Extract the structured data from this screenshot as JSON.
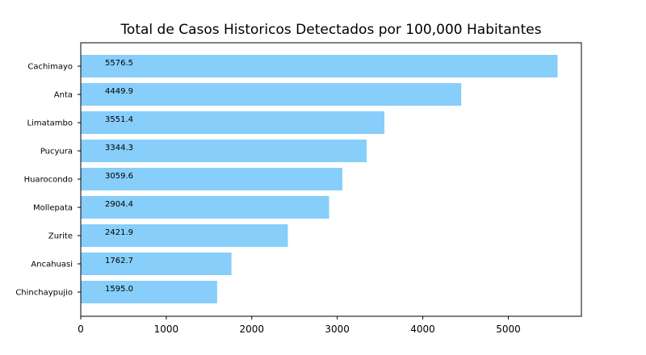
{
  "chart_data": {
    "type": "bar",
    "orientation": "horizontal",
    "title": "Total de Casos Historicos Detectados por 100,000 Habitantes",
    "xlabel": "",
    "ylabel": "",
    "categories": [
      "Cachimayo",
      "Anta",
      "Limatambo",
      "Pucyura",
      "Huarocondo",
      "Mollepata",
      "Zurite",
      "Ancahuasi",
      "Chinchaypujio"
    ],
    "values": [
      5576.5,
      4449.9,
      3551.4,
      3344.3,
      3059.6,
      2904.4,
      2421.9,
      1762.7,
      1595.0
    ],
    "data_labels": [
      "5576.5",
      "4449.9",
      "3551.4",
      "3344.3",
      "3059.6",
      "2904.4",
      "2421.9",
      "1762.7",
      "1595.0"
    ],
    "xlim": [
      0,
      5855
    ],
    "xticks": [
      0,
      1000,
      2000,
      3000,
      4000,
      5000
    ],
    "xtick_labels": [
      "0",
      "1000",
      "2000",
      "3000",
      "4000",
      "5000"
    ],
    "bar_color": "#87cefa",
    "grid": false,
    "legend": "none"
  }
}
